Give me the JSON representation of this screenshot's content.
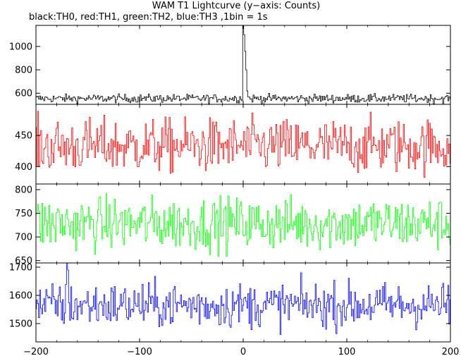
{
  "title": "WAM T1 Lightcurve (y−axis: Counts)",
  "subtitle": "black:TH0, red:TH1, green:TH2, blue:TH3 ,1bin = 1s",
  "chart_data": {
    "type": "line",
    "title": "WAM T1 Lightcurve (y−axis: Counts)",
    "subtitle": "black:TH0, red:TH1, green:TH2, blue:TH3 ,1bin = 1s",
    "xlim": [
      -200,
      200
    ],
    "x_ticks": [
      {
        "value": -200,
        "label": "−200"
      },
      {
        "value": -100,
        "label": "−100"
      },
      {
        "value": 0,
        "label": "0"
      },
      {
        "value": 100,
        "label": "100"
      },
      {
        "value": 200,
        "label": "200"
      }
    ],
    "bin_seconds": 1,
    "panels": [
      {
        "name": "TH0",
        "color": "#000000",
        "ylim": [
          505,
          1180
        ],
        "y_ticks": [
          {
            "value": 600,
            "label": "600"
          },
          {
            "value": 800,
            "label": "800"
          },
          {
            "value": 1000,
            "label": "1000"
          }
        ],
        "baseline": 555,
        "noise": 18,
        "features": [
          {
            "x": 0,
            "y": 1180
          },
          {
            "x": 1,
            "y": 1100
          },
          {
            "x": 2,
            "y": 960
          },
          {
            "x": 3,
            "y": 800
          },
          {
            "x": 4,
            "y": 620
          }
        ]
      },
      {
        "name": "TH1",
        "color": "#ff0000",
        "ylim": [
          372,
          500
        ],
        "y_ticks": [
          {
            "value": 400,
            "label": "400"
          },
          {
            "value": 450,
            "label": "450"
          }
        ],
        "baseline": 433,
        "noise": 22,
        "features": []
      },
      {
        "name": "TH2",
        "color": "#00ff00",
        "ylim": [
          645,
          812
        ],
        "y_ticks": [
          {
            "value": 650,
            "label": "650"
          },
          {
            "value": 700,
            "label": "700"
          },
          {
            "value": 750,
            "label": "750"
          },
          {
            "value": 800,
            "label": "800"
          }
        ],
        "baseline": 728,
        "noise": 28,
        "features": []
      },
      {
        "name": "TH3",
        "color": "#0000ff",
        "ylim": [
          1435,
          1715
        ],
        "y_ticks": [
          {
            "value": 1500,
            "label": "1500"
          },
          {
            "value": 1600,
            "label": "1600"
          },
          {
            "value": 1700,
            "label": "1700"
          }
        ],
        "baseline": 1565,
        "noise": 40,
        "features": [
          {
            "x": -170,
            "y": 1715
          },
          {
            "x": -169,
            "y": 1690
          }
        ]
      }
    ]
  }
}
